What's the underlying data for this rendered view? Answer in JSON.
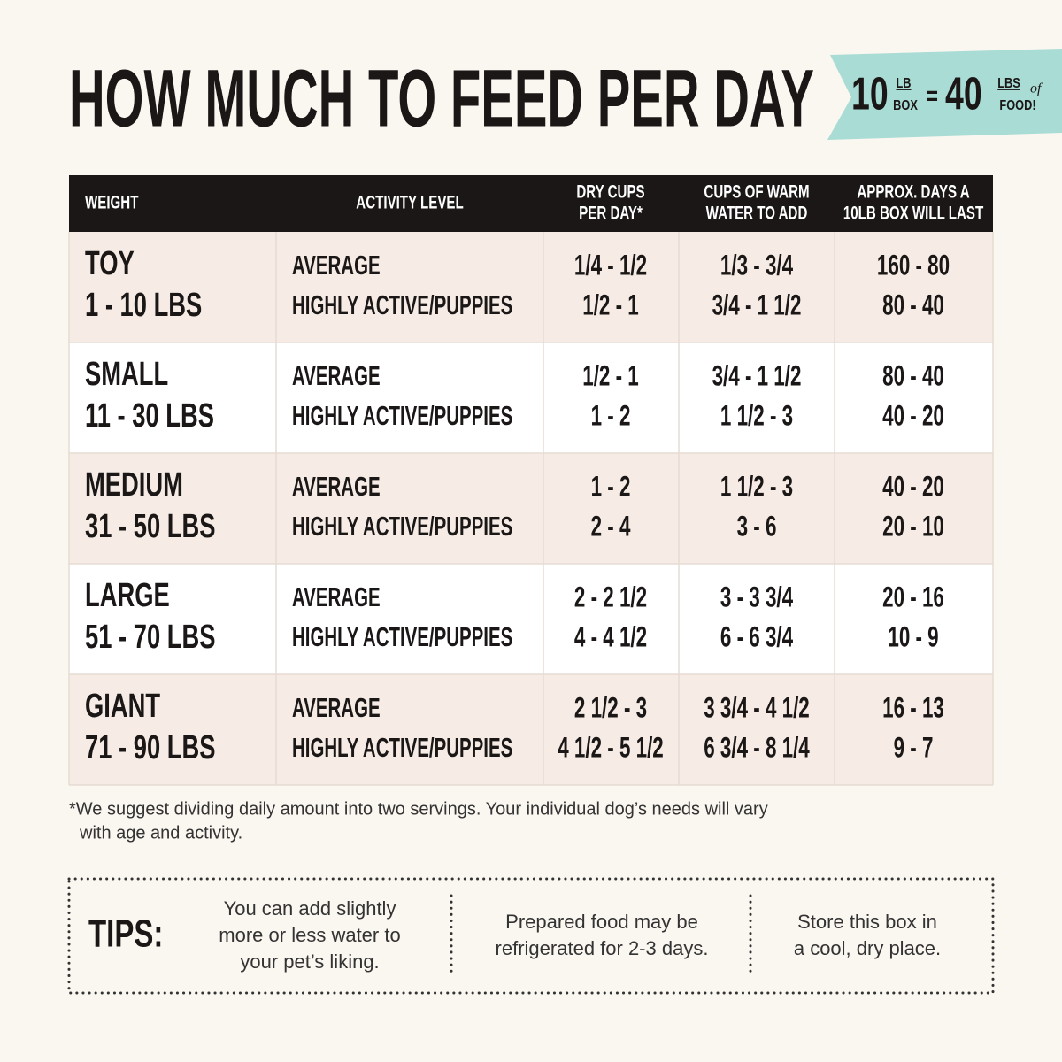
{
  "header": {
    "title": "HOW MUCH TO FEED PER DAY",
    "badge": {
      "box_amount": "10",
      "box_unit_top": "LB",
      "box_unit_bottom": "BOX",
      "equals": "=",
      "food_amount": "40",
      "food_unit_top": "LBS",
      "food_unit_of": "of",
      "food_unit_bottom": "FOOD!"
    }
  },
  "table": {
    "columns": [
      [
        "WEIGHT"
      ],
      [
        "ACTIVITY LEVEL"
      ],
      [
        "DRY CUPS",
        "PER DAY*"
      ],
      [
        "CUPS OF WARM",
        "WATER TO ADD"
      ],
      [
        "APPROX. DAYS A",
        "10LB BOX WILL LAST"
      ]
    ],
    "rows": [
      {
        "size": "TOY",
        "range": "1 - 10 LBS",
        "activity": [
          "AVERAGE",
          "HIGHLY ACTIVE/PUPPIES"
        ],
        "dry_cups": [
          "1/4 - 1/2",
          "1/2 - 1"
        ],
        "water": [
          "1/3 - 3/4",
          "3/4 - 1 1/2"
        ],
        "days": [
          "160 - 80",
          "80 - 40"
        ]
      },
      {
        "size": "SMALL",
        "range": "11 - 30 LBS",
        "activity": [
          "AVERAGE",
          "HIGHLY ACTIVE/PUPPIES"
        ],
        "dry_cups": [
          "1/2 - 1",
          "1 - 2"
        ],
        "water": [
          "3/4 - 1 1/2",
          "1 1/2 - 3"
        ],
        "days": [
          "80 - 40",
          "40 - 20"
        ]
      },
      {
        "size": "MEDIUM",
        "range": "31 - 50 LBS",
        "activity": [
          "AVERAGE",
          "HIGHLY ACTIVE/PUPPIES"
        ],
        "dry_cups": [
          "1 - 2",
          "2 - 4"
        ],
        "water": [
          "1 1/2 - 3",
          "3 - 6"
        ],
        "days": [
          "40 - 20",
          "20 - 10"
        ]
      },
      {
        "size": "LARGE",
        "range": "51 - 70 LBS",
        "activity": [
          "AVERAGE",
          "HIGHLY ACTIVE/PUPPIES"
        ],
        "dry_cups": [
          "2 - 2 1/2",
          "4 - 4 1/2"
        ],
        "water": [
          "3 - 3 3/4",
          "6 - 6 3/4"
        ],
        "days": [
          "20 - 16",
          "10 - 9"
        ]
      },
      {
        "size": "GIANT",
        "range": "71 - 90 LBS",
        "activity": [
          "AVERAGE",
          "HIGHLY ACTIVE/PUPPIES"
        ],
        "dry_cups": [
          "2 1/2 - 3",
          "4 1/2 - 5 1/2"
        ],
        "water": [
          "3 3/4 - 4 1/2",
          "6 3/4 - 8 1/4"
        ],
        "days": [
          "16 - 13",
          "9 - 7"
        ]
      }
    ]
  },
  "footnote": [
    "*We suggest dividing daily amount into two servings. Your individual dog’s needs will vary",
    "with age and activity."
  ],
  "tips": {
    "label": "TIPS:",
    "items": [
      [
        "You can add slightly",
        "more or less water to",
        "your pet’s liking."
      ],
      [
        "Prepared food may be",
        "refrigerated for 2-3 days."
      ],
      [
        "Store this box in",
        "a cool, dry place."
      ]
    ]
  }
}
